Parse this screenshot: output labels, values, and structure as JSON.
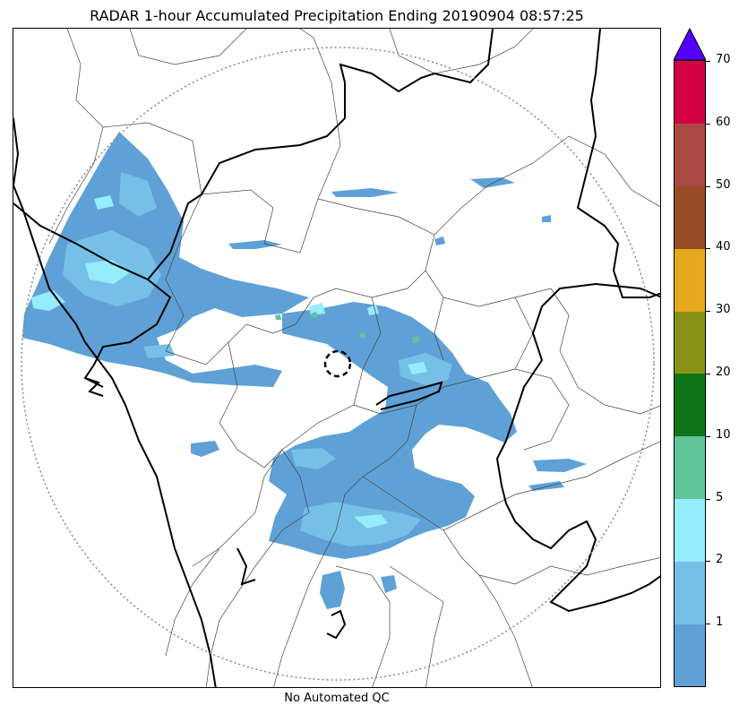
{
  "title": "RADAR 1-hour Accumulated Precipitation Ending 20190904 08:57:25",
  "subtitle": "No Automated QC",
  "colorbar": {
    "labels": [
      "1",
      "2",
      "5",
      "10",
      "20",
      "30",
      "40",
      "50",
      "60",
      "70"
    ],
    "colors": [
      "#5fa1d6",
      "#76bfe6",
      "#95ecfd",
      "#5ec498",
      "#0d7516",
      "#8a9215",
      "#e6a91c",
      "#974c25",
      "#a94a43",
      "#d30043"
    ],
    "arrow_color": "#5500ff"
  },
  "map": {
    "radar_station": "radar-site-marker",
    "range_ring": "dotted",
    "precip_color": "#5fa1d6"
  }
}
